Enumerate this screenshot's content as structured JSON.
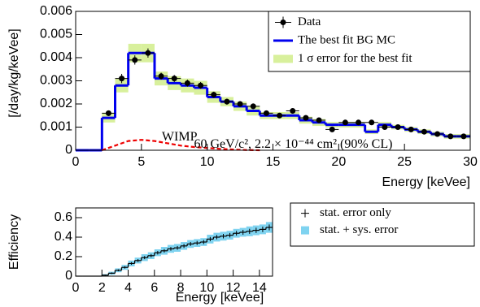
{
  "chart_data": [
    {
      "type": "histogram",
      "xlim": [
        0,
        30
      ],
      "ylim": [
        0,
        0.006
      ],
      "xticks": [
        0,
        5,
        10,
        15,
        20,
        25,
        30
      ],
      "yticks": [
        0,
        0.001,
        0.002,
        0.003,
        0.004,
        0.005,
        0.006
      ],
      "xlabel": "Energy [keVee]",
      "ylabel": "[/day/kg/keVee]",
      "legend": "upper right",
      "series": [
        {
          "name": "Data",
          "color": "#000000",
          "x": [
            2.5,
            3.5,
            4.5,
            5.5,
            6.5,
            7.5,
            8.5,
            9.5,
            10.5,
            11.5,
            12.5,
            13.5,
            14.5,
            15.5,
            16.5,
            17.5,
            18.5,
            19.5,
            20.5,
            21.5,
            22.5,
            23.5,
            24.5,
            25.5,
            26.5,
            27.5,
            28.5,
            29.5
          ],
          "values": [
            0.0016,
            0.0031,
            0.0039,
            0.0042,
            0.0032,
            0.0031,
            0.0029,
            0.0028,
            0.0024,
            0.0021,
            0.002,
            0.0019,
            0.0016,
            0.0015,
            0.0017,
            0.0014,
            0.0013,
            0.0009,
            0.0012,
            0.0012,
            0.0012,
            0.001,
            0.001,
            0.0009,
            0.0008,
            0.0007,
            0.0006,
            0.0006
          ],
          "errors": [
            0.00012,
            0.0002,
            0.0002,
            0.0002,
            0.00015,
            0.00015,
            0.00015,
            0.00015,
            0.00013,
            0.00013,
            0.00012,
            0.00012,
            0.00011,
            0.00011,
            0.00011,
            0.0001,
            0.0001,
            0.0001,
            0.0001,
            0.0001,
            0.0001,
            0.0001,
            0.0001,
            0.0001,
            0.0001,
            0.0001,
            0.0001,
            0.0001
          ]
        },
        {
          "name": "The best fit BG MC",
          "color": "#0000ee",
          "bins": [
            0,
            1,
            2,
            3,
            4,
            5,
            6,
            7,
            8,
            9,
            10,
            11,
            12,
            13,
            14,
            15,
            16,
            17,
            18,
            19,
            20,
            21,
            22,
            23,
            24,
            25,
            26,
            27,
            28,
            29,
            30
          ],
          "values": [
            0,
            0,
            0.0014,
            0.0028,
            0.0042,
            0.0042,
            0.0031,
            0.0029,
            0.0028,
            0.0027,
            0.0023,
            0.0021,
            0.0019,
            0.0017,
            0.0015,
            0.0015,
            0.0015,
            0.0013,
            0.0012,
            0.0011,
            0.0011,
            0.0011,
            0.0008,
            0.0011,
            0.001,
            0.0009,
            0.0008,
            0.0007,
            0.0006,
            0.0006
          ],
          "band_name": "1 σ error for the best fit",
          "band_color": "#d8f09c",
          "band_errors": [
            0,
            0,
            0.0002,
            0.0003,
            0.0004,
            0.0004,
            0.0003,
            0.0003,
            0.0003,
            0.0003,
            0.00025,
            0.0002,
            0.0002,
            0.0002,
            0.00015,
            0.00015,
            0.00015,
            0.00015,
            0.00015,
            0.00012,
            0.00012,
            0.00012,
            0.0001,
            0.00012,
            0.0001,
            0.0001,
            0.0001,
            0.0001,
            0.0001,
            0.0001
          ]
        }
      ],
      "curve": {
        "color": "#ee0000",
        "x": [
          2,
          3,
          4,
          5,
          6,
          7,
          8,
          9,
          10,
          11,
          12,
          13,
          14
        ],
        "values": [
          0,
          0.0002,
          0.0004,
          0.00045,
          0.0004,
          0.0003,
          0.0002,
          0.00014,
          0.0001,
          6e-05,
          3e-05,
          1e-05,
          0
        ]
      },
      "annotations": [
        "WIMP",
        "60 GeV/c², 2.2 × 10⁻⁴⁴ cm² (90% CL)"
      ]
    },
    {
      "type": "histogram",
      "xlim": [
        0,
        15
      ],
      "ylim": [
        0,
        0.7
      ],
      "xticks": [
        0,
        2,
        4,
        6,
        8,
        10,
        12,
        14
      ],
      "yticks": [
        0,
        0.2,
        0.4,
        0.6
      ],
      "xlabel": "Energy [keVee]",
      "ylabel": "Efficiency",
      "legend": "right",
      "series": [
        {
          "name": "stat. error only",
          "color": "#000000",
          "bins": [
            0,
            0.5,
            1,
            1.5,
            2,
            2.5,
            3,
            3.5,
            4,
            4.5,
            5,
            5.5,
            6,
            6.5,
            7,
            7.5,
            8,
            8.5,
            9,
            9.5,
            10,
            10.5,
            11,
            11.5,
            12,
            12.5,
            13,
            13.5,
            14,
            14.5,
            15
          ],
          "values": [
            0,
            0,
            0,
            0,
            0.01,
            0.03,
            0.06,
            0.09,
            0.13,
            0.16,
            0.19,
            0.21,
            0.24,
            0.26,
            0.28,
            0.29,
            0.31,
            0.33,
            0.34,
            0.35,
            0.38,
            0.4,
            0.41,
            0.42,
            0.44,
            0.45,
            0.46,
            0.47,
            0.48,
            0.5
          ],
          "errors": [
            0,
            0,
            0,
            0,
            0.005,
            0.008,
            0.01,
            0.012,
            0.014,
            0.015,
            0.016,
            0.017,
            0.018,
            0.018,
            0.019,
            0.019,
            0.02,
            0.02,
            0.021,
            0.021,
            0.022,
            0.022,
            0.023,
            0.023,
            0.024,
            0.025,
            0.026,
            0.027,
            0.028,
            0.03
          ],
          "band_name": "stat. + sys. error",
          "band_color": "#7fd3f0",
          "band_errors": [
            0,
            0,
            0,
            0,
            0.01,
            0.015,
            0.02,
            0.025,
            0.03,
            0.03,
            0.035,
            0.035,
            0.035,
            0.04,
            0.04,
            0.04,
            0.04,
            0.04,
            0.04,
            0.04,
            0.045,
            0.045,
            0.045,
            0.045,
            0.045,
            0.045,
            0.05,
            0.05,
            0.05,
            0.055
          ]
        }
      ]
    }
  ]
}
